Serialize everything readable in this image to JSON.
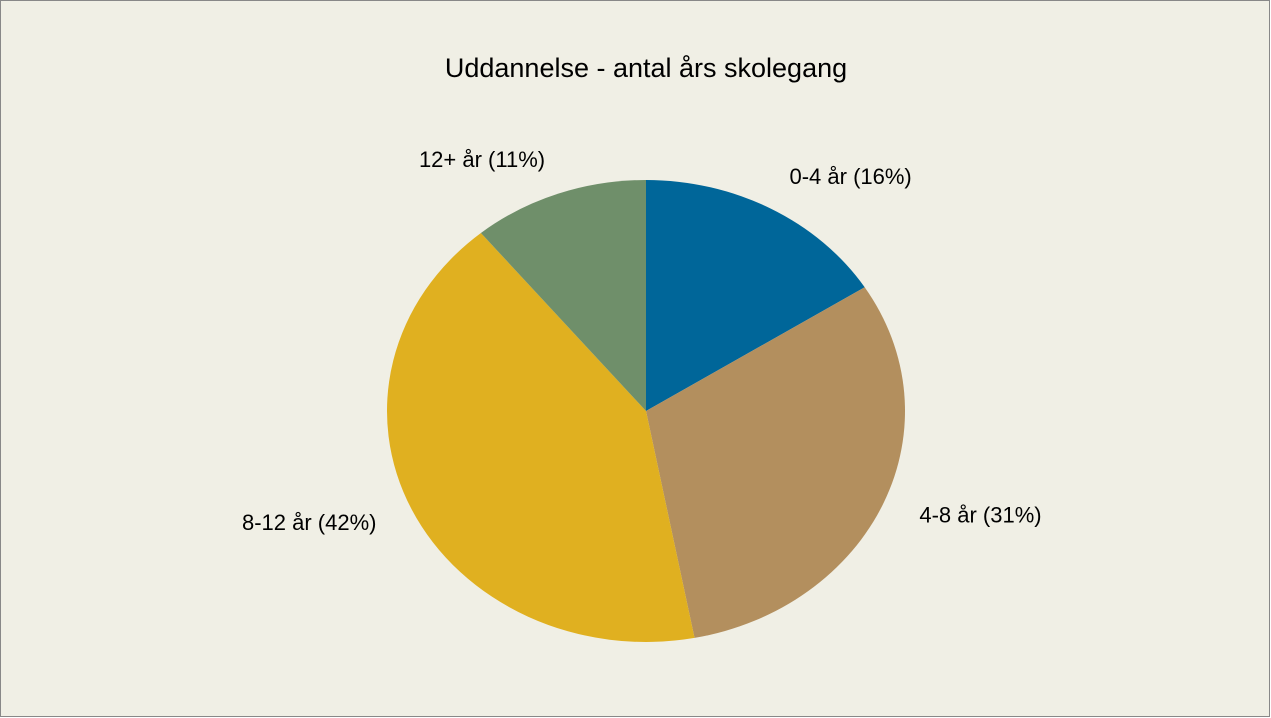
{
  "chart_data": {
    "type": "pie",
    "title": "Uddannelse - antal års skolegang",
    "categories": [
      "0-4 år (16%)",
      "4-8 år (31%)",
      "8-12 år (42%)",
      "12+ år (11%)"
    ],
    "values": [
      16,
      31,
      42,
      11
    ],
    "colors": [
      "#006699",
      "#b38f5e",
      "#e0b020",
      "#6f8f6a"
    ]
  }
}
